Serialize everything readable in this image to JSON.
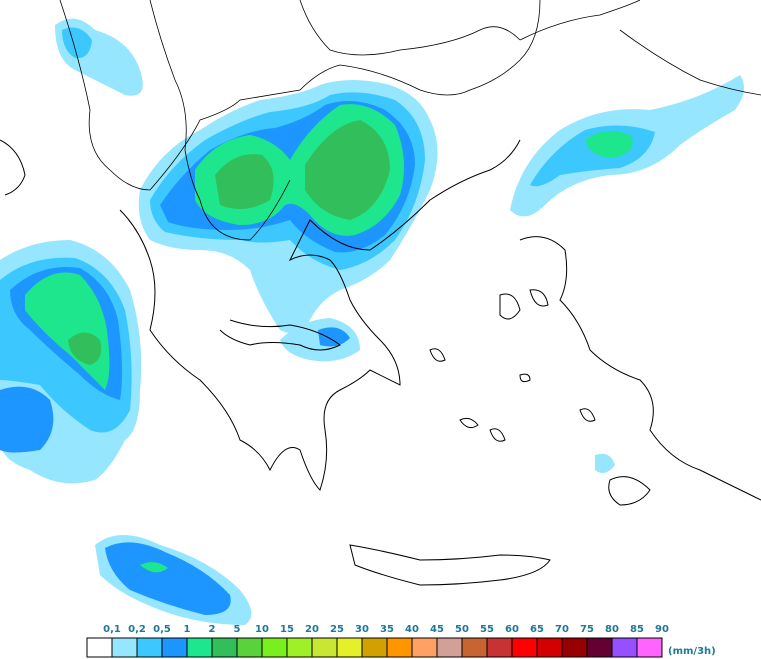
{
  "legend": {
    "labels": [
      "0,1",
      "0,2",
      "0,5",
      "1",
      "2",
      "5",
      "10",
      "15",
      "20",
      "25",
      "30",
      "35",
      "40",
      "45",
      "50",
      "55",
      "60",
      "65",
      "70",
      "75",
      "80",
      "85",
      "90"
    ],
    "colors": [
      "#ffffff",
      "#96e6ff",
      "#3cc8ff",
      "#1e96ff",
      "#1ee68c",
      "#32be5a",
      "#5ad23c",
      "#78f01e",
      "#a0f028",
      "#c8e632",
      "#e6f028",
      "#d2a000",
      "#ff9600",
      "#ffa064",
      "#d2a096",
      "#c86432",
      "#c83232",
      "#ff0000",
      "#d20000",
      "#960000",
      "#640032",
      "#9650ff",
      "#ff64ff"
    ],
    "unit": "(mm/3h)"
  }
}
